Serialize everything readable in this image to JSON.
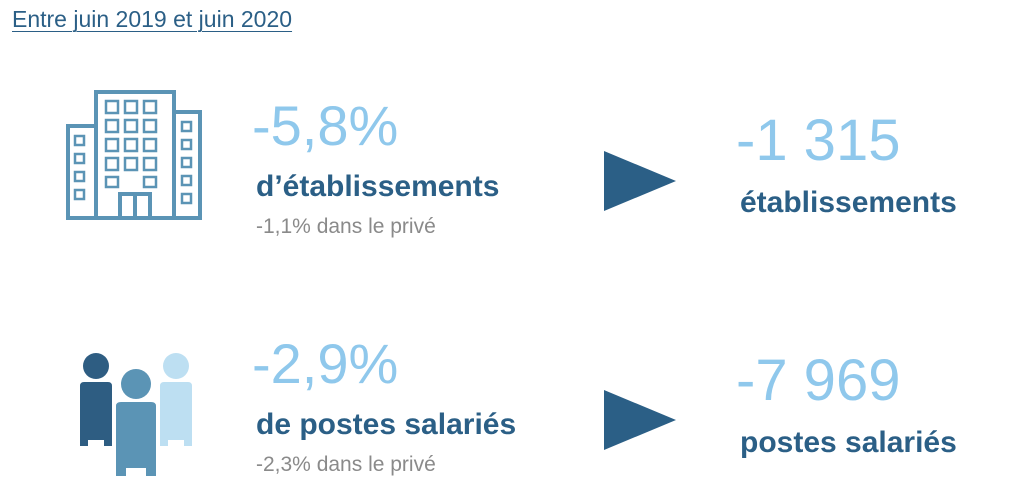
{
  "header": {
    "title": "Entre juin 2019 et juin 2020"
  },
  "establishments": {
    "icon": "building-icon",
    "percent": "-5,8%",
    "label": "d’établissements",
    "private_note": "-1,1% dans le privé",
    "count": "-1 315",
    "count_label": "établissements"
  },
  "jobs": {
    "icon": "people-icon",
    "percent": "-2,9%",
    "label": "de postes salariés",
    "private_note": "-2,3% dans le privé",
    "count": "-7 969",
    "count_label": "postes salariés"
  },
  "colors": {
    "dark_blue": "#2b5f86",
    "light_blue": "#8fc8ec",
    "mid_blue": "#5b94b5",
    "pale_blue": "#bddff2",
    "gray": "#8a8a8a"
  }
}
